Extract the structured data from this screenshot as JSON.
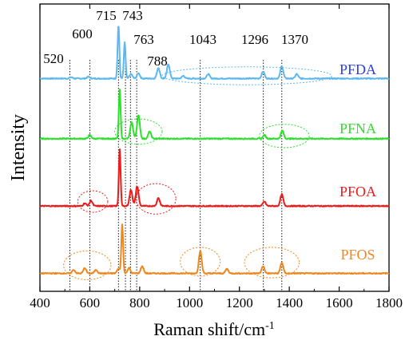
{
  "chart_data": {
    "type": "line",
    "xlabel": "Raman shift/cm",
    "xlabel_superscript": "-1",
    "ylabel": "Intensity",
    "xlim": [
      400,
      1800
    ],
    "xticks": [
      "400",
      "600",
      "800",
      "1000",
      "1200",
      "1400",
      "1600",
      "1800"
    ],
    "grid": false,
    "peak_markers": [
      {
        "x": 520,
        "label": "520"
      },
      {
        "x": 600,
        "label": "600"
      },
      {
        "x": 715,
        "label": "715"
      },
      {
        "x": 743,
        "label": "743"
      },
      {
        "x": 763,
        "label": "763"
      },
      {
        "x": 788,
        "label": "788"
      },
      {
        "x": 1043,
        "label": "1043"
      },
      {
        "x": 1296,
        "label": "1296"
      },
      {
        "x": 1370,
        "label": "1370"
      }
    ],
    "series": [
      {
        "name": "PFDA",
        "color": "#5db8f0",
        "baseline": 0.72,
        "peaks": [
          [
            525,
            0.015
          ],
          [
            595,
            0.02
          ],
          [
            715,
            0.6
          ],
          [
            740,
            0.4
          ],
          [
            765,
            0.05
          ],
          [
            795,
            0.06
          ],
          [
            875,
            0.12
          ],
          [
            915,
            0.16
          ],
          [
            975,
            0.03
          ],
          [
            1075,
            0.05
          ],
          [
            1295,
            0.08
          ],
          [
            1370,
            0.14
          ],
          [
            1430,
            0.05
          ]
        ],
        "annotations": [
          {
            "cx": 1230,
            "cy": 0.75,
            "rx": 340,
            "ry": 0.1,
            "color": "#5db8f0"
          }
        ]
      },
      {
        "name": "PFNA",
        "color": "#2ee02e",
        "baseline": 0.05,
        "peaks": [
          [
            600,
            0.04
          ],
          [
            720,
            0.55
          ],
          [
            768,
            0.18
          ],
          [
            795,
            0.26
          ],
          [
            840,
            0.08
          ],
          [
            1300,
            0.04
          ],
          [
            1372,
            0.09
          ]
        ],
        "annotations": [
          {
            "cx": 795,
            "cy": 0.13,
            "rx": 95,
            "ry": 0.14,
            "color": "#2ee02e"
          },
          {
            "cx": 1380,
            "cy": 0.08,
            "rx": 100,
            "ry": 0.13,
            "color": "#2ee02e"
          }
        ]
      },
      {
        "name": "PFOA",
        "color": "#ee1a1a",
        "baseline": -0.7,
        "peaks": [
          [
            580,
            0.03
          ],
          [
            605,
            0.06
          ],
          [
            720,
            0.63
          ],
          [
            765,
            0.18
          ],
          [
            790,
            0.22
          ],
          [
            875,
            0.09
          ],
          [
            1300,
            0.05
          ],
          [
            1370,
            0.13
          ]
        ],
        "annotations": [
          {
            "cx": 612,
            "cy": -0.65,
            "rx": 60,
            "ry": 0.12,
            "color": "#ee1a1a"
          },
          {
            "cx": 865,
            "cy": -0.62,
            "rx": 80,
            "ry": 0.17,
            "color": "#ee1a1a"
          }
        ]
      },
      {
        "name": "PFOS",
        "color": "#f0861e",
        "baseline": -1.45,
        "peaks": [
          [
            535,
            0.04
          ],
          [
            580,
            0.06
          ],
          [
            625,
            0.04
          ],
          [
            715,
            0.05
          ],
          [
            730,
            0.55
          ],
          [
            757,
            0.06
          ],
          [
            810,
            0.08
          ],
          [
            1043,
            0.25
          ],
          [
            1150,
            0.05
          ],
          [
            1295,
            0.08
          ],
          [
            1370,
            0.12
          ]
        ],
        "annotations": [
          {
            "cx": 590,
            "cy": -1.36,
            "rx": 95,
            "ry": 0.16,
            "color": "#f0861e"
          },
          {
            "cx": 1043,
            "cy": -1.32,
            "rx": 80,
            "ry": 0.16,
            "color": "#f0861e"
          },
          {
            "cx": 1330,
            "cy": -1.33,
            "rx": 110,
            "ry": 0.17,
            "color": "#f0861e"
          }
        ]
      }
    ]
  }
}
